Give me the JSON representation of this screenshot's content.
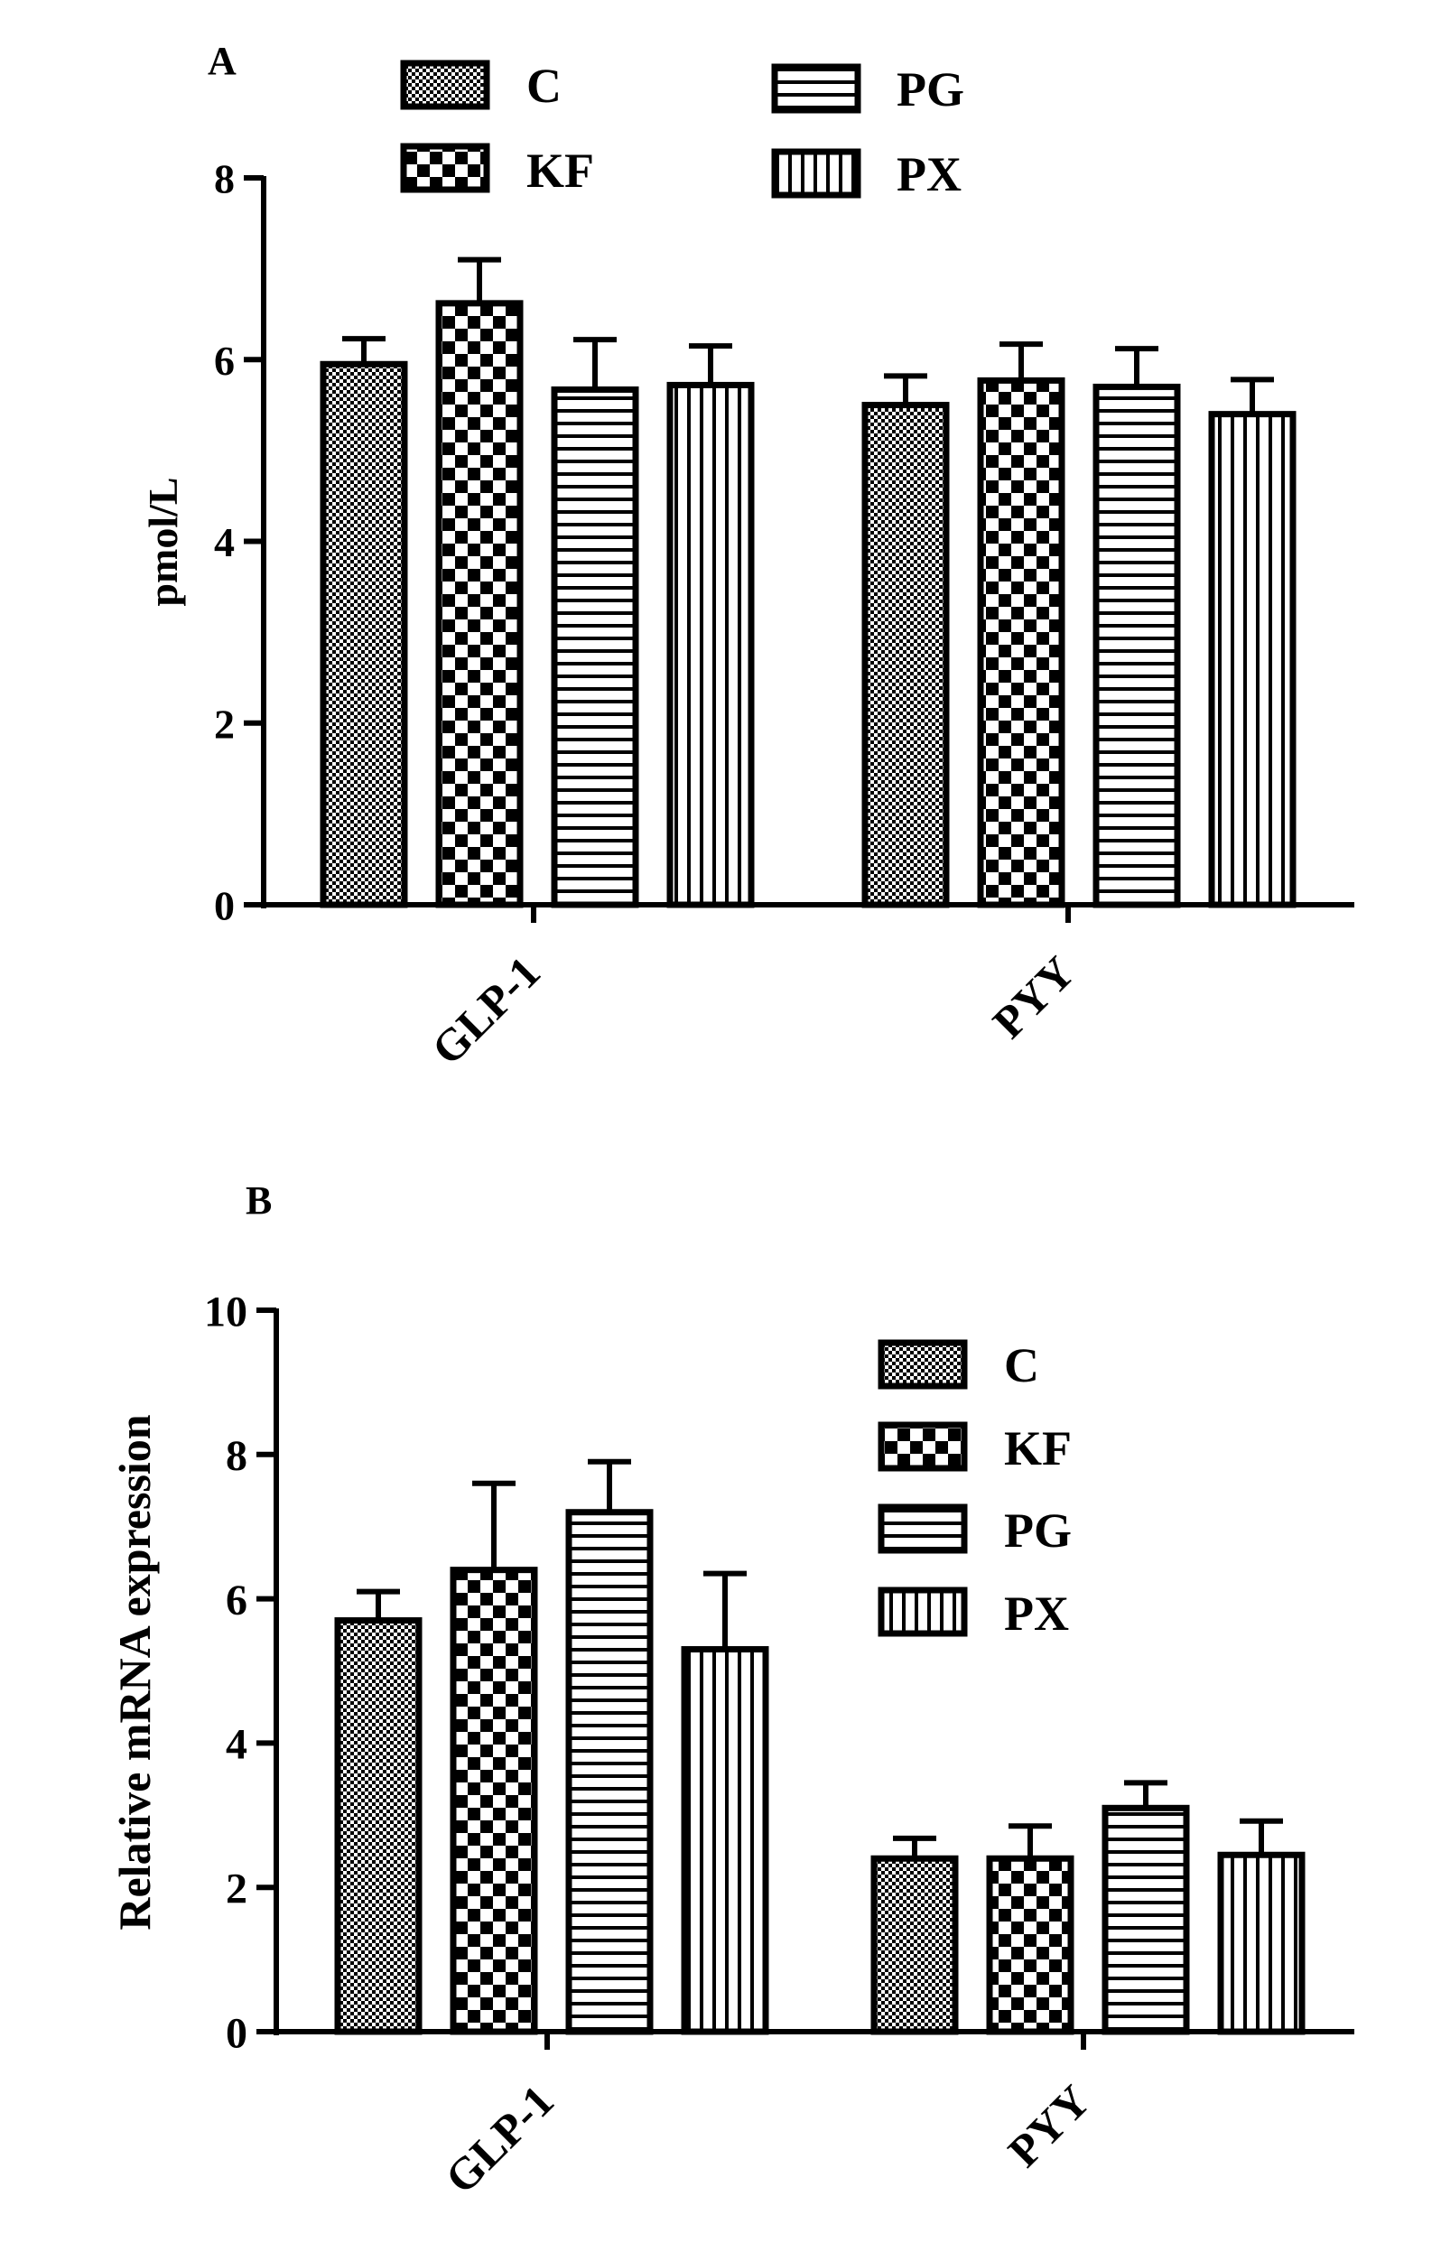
{
  "colors": {
    "ink": "#000000",
    "background": "#ffffff"
  },
  "patterns": {
    "C": "fine-checker",
    "KF": "coarse-checker",
    "PG": "horizontal-stripes",
    "PX": "vertical-stripes"
  },
  "chart_data": [
    {
      "type": "bar",
      "panel_label": "A",
      "title": "",
      "xlabel": "",
      "ylabel": "pmol/L",
      "ylim": [
        0,
        8
      ],
      "yticks": [
        "0",
        "2",
        "4",
        "6",
        "8"
      ],
      "categories": [
        "GLP-1",
        "PYY"
      ],
      "legend": {
        "placement": "top",
        "entries": [
          "C",
          "KF",
          "PG",
          "PX"
        ]
      },
      "grid": false,
      "series": [
        {
          "name": "C",
          "values": [
            5.95,
            5.5
          ],
          "errors": [
            0.28,
            0.32
          ]
        },
        {
          "name": "KF",
          "values": [
            6.62,
            5.77
          ],
          "errors": [
            0.48,
            0.4
          ]
        },
        {
          "name": "PG",
          "values": [
            5.67,
            5.7
          ],
          "errors": [
            0.55,
            0.42
          ]
        },
        {
          "name": "PX",
          "values": [
            5.72,
            5.4
          ],
          "errors": [
            0.43,
            0.38
          ]
        }
      ]
    },
    {
      "type": "bar",
      "panel_label": "B",
      "title": "",
      "xlabel": "",
      "ylabel": "Relative mRNA expression",
      "ylim": [
        0,
        10
      ],
      "yticks": [
        "0",
        "2",
        "4",
        "6",
        "8",
        "10"
      ],
      "categories": [
        "GLP-1",
        "PYY"
      ],
      "legend": {
        "placement": "top-right",
        "entries": [
          "C",
          "KF",
          "PG",
          "PX"
        ]
      },
      "grid": false,
      "series": [
        {
          "name": "C",
          "values": [
            5.7,
            2.4
          ],
          "errors": [
            0.4,
            0.28
          ]
        },
        {
          "name": "KF",
          "values": [
            6.4,
            2.4
          ],
          "errors": [
            1.2,
            0.45
          ]
        },
        {
          "name": "PG",
          "values": [
            7.2,
            3.1
          ],
          "errors": [
            0.7,
            0.35
          ]
        },
        {
          "name": "PX",
          "values": [
            5.3,
            2.45
          ],
          "errors": [
            1.05,
            0.47
          ]
        }
      ]
    }
  ]
}
